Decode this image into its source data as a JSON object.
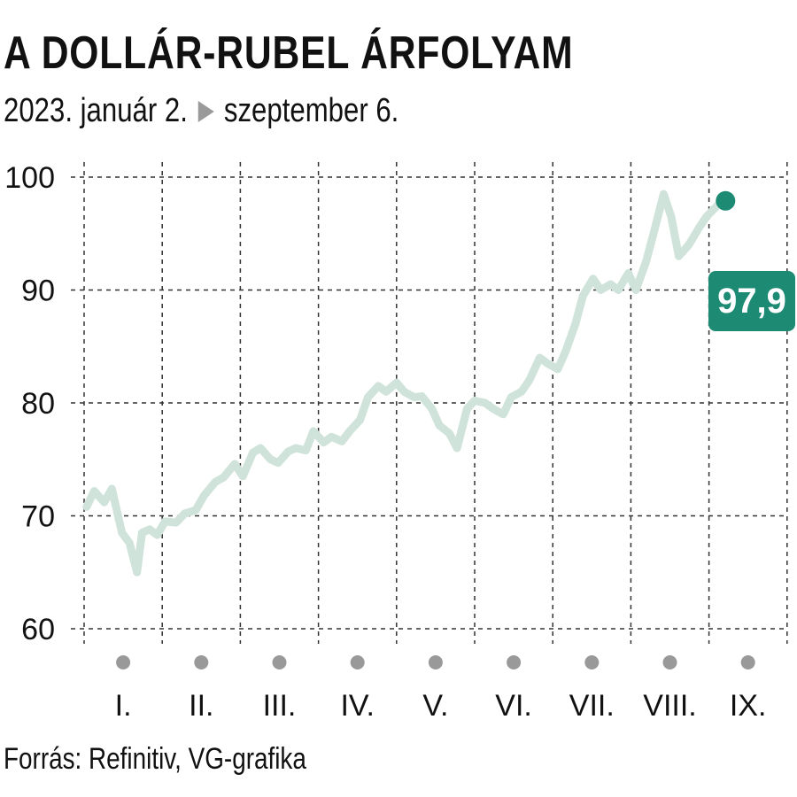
{
  "title": "A DOLLÁR-RUBEL ÁRFOLYAM",
  "subtitle": {
    "start": "2023. január 2.",
    "end": "szeptember 6."
  },
  "source": "Forrás: Refinitiv, VG-grafika",
  "last_value_label": "97,9",
  "colors": {
    "line": "#cfe3da",
    "accent": "#1d8a74",
    "grid": "#333333",
    "month_dot": "#999999"
  },
  "chart_data": {
    "type": "line",
    "title": "A DOLLÁR-RUBEL ÁRFOLYAM",
    "xlabel": "",
    "ylabel": "",
    "ylim": [
      60,
      100
    ],
    "y_ticks": [
      60,
      70,
      80,
      90,
      100
    ],
    "x_range": [
      "2023-01-02",
      "2023-09-06"
    ],
    "month_labels": [
      "I.",
      "II.",
      "III.",
      "IV.",
      "V.",
      "VI.",
      "VII.",
      "VIII.",
      "IX."
    ],
    "grid": true,
    "series": [
      {
        "values": [
          {
            "x": "2023-01-02",
            "y": 70.8
          },
          {
            "x": "2023-01-05",
            "y": 72.2
          },
          {
            "x": "2023-01-09",
            "y": 71.2
          },
          {
            "x": "2023-01-12",
            "y": 72.4
          },
          {
            "x": "2023-01-16",
            "y": 68.5
          },
          {
            "x": "2023-01-19",
            "y": 67.6
          },
          {
            "x": "2023-01-22",
            "y": 65.0
          },
          {
            "x": "2023-01-24",
            "y": 68.5
          },
          {
            "x": "2023-01-27",
            "y": 68.8
          },
          {
            "x": "2023-01-30",
            "y": 68.3
          },
          {
            "x": "2023-02-02",
            "y": 69.5
          },
          {
            "x": "2023-02-06",
            "y": 69.4
          },
          {
            "x": "2023-02-09",
            "y": 70.2
          },
          {
            "x": "2023-02-13",
            "y": 70.5
          },
          {
            "x": "2023-02-16",
            "y": 71.8
          },
          {
            "x": "2023-02-20",
            "y": 73.0
          },
          {
            "x": "2023-02-23",
            "y": 73.4
          },
          {
            "x": "2023-02-27",
            "y": 74.6
          },
          {
            "x": "2023-03-02",
            "y": 73.5
          },
          {
            "x": "2023-03-06",
            "y": 75.6
          },
          {
            "x": "2023-03-09",
            "y": 76.0
          },
          {
            "x": "2023-03-13",
            "y": 75.0
          },
          {
            "x": "2023-03-16",
            "y": 74.7
          },
          {
            "x": "2023-03-20",
            "y": 75.7
          },
          {
            "x": "2023-03-23",
            "y": 76.0
          },
          {
            "x": "2023-03-27",
            "y": 75.8
          },
          {
            "x": "2023-03-30",
            "y": 77.5
          },
          {
            "x": "2023-04-03",
            "y": 76.5
          },
          {
            "x": "2023-04-06",
            "y": 77.0
          },
          {
            "x": "2023-04-10",
            "y": 76.6
          },
          {
            "x": "2023-04-13",
            "y": 77.5
          },
          {
            "x": "2023-04-17",
            "y": 78.5
          },
          {
            "x": "2023-04-20",
            "y": 80.5
          },
          {
            "x": "2023-04-24",
            "y": 81.5
          },
          {
            "x": "2023-04-27",
            "y": 81.0
          },
          {
            "x": "2023-05-01",
            "y": 81.8
          },
          {
            "x": "2023-05-04",
            "y": 81.0
          },
          {
            "x": "2023-05-08",
            "y": 80.5
          },
          {
            "x": "2023-05-11",
            "y": 80.6
          },
          {
            "x": "2023-05-15",
            "y": 79.5
          },
          {
            "x": "2023-05-18",
            "y": 78.0
          },
          {
            "x": "2023-05-22",
            "y": 77.3
          },
          {
            "x": "2023-05-25",
            "y": 76.0
          },
          {
            "x": "2023-05-29",
            "y": 79.5
          },
          {
            "x": "2023-06-01",
            "y": 80.2
          },
          {
            "x": "2023-06-05",
            "y": 80.0
          },
          {
            "x": "2023-06-08",
            "y": 79.5
          },
          {
            "x": "2023-06-12",
            "y": 79.0
          },
          {
            "x": "2023-06-15",
            "y": 80.5
          },
          {
            "x": "2023-06-19",
            "y": 81.0
          },
          {
            "x": "2023-06-22",
            "y": 82.0
          },
          {
            "x": "2023-06-26",
            "y": 84.0
          },
          {
            "x": "2023-06-29",
            "y": 83.5
          },
          {
            "x": "2023-07-03",
            "y": 83.0
          },
          {
            "x": "2023-07-06",
            "y": 84.5
          },
          {
            "x": "2023-07-10",
            "y": 87.0
          },
          {
            "x": "2023-07-13",
            "y": 89.5
          },
          {
            "x": "2023-07-17",
            "y": 91.0
          },
          {
            "x": "2023-07-20",
            "y": 90.0
          },
          {
            "x": "2023-07-24",
            "y": 90.5
          },
          {
            "x": "2023-07-27",
            "y": 90.0
          },
          {
            "x": "2023-07-31",
            "y": 91.5
          },
          {
            "x": "2023-08-03",
            "y": 90.0
          },
          {
            "x": "2023-08-07",
            "y": 92.5
          },
          {
            "x": "2023-08-10",
            "y": 95.0
          },
          {
            "x": "2023-08-14",
            "y": 98.5
          },
          {
            "x": "2023-08-17",
            "y": 96.5
          },
          {
            "x": "2023-08-20",
            "y": 93.0
          },
          {
            "x": "2023-08-24",
            "y": 94.0
          },
          {
            "x": "2023-08-28",
            "y": 95.5
          },
          {
            "x": "2023-08-31",
            "y": 96.5
          },
          {
            "x": "2023-09-06",
            "y": 97.9
          }
        ]
      }
    ],
    "last_point": {
      "x": "2023-09-06",
      "y": 97.9,
      "label": "97,9"
    }
  }
}
